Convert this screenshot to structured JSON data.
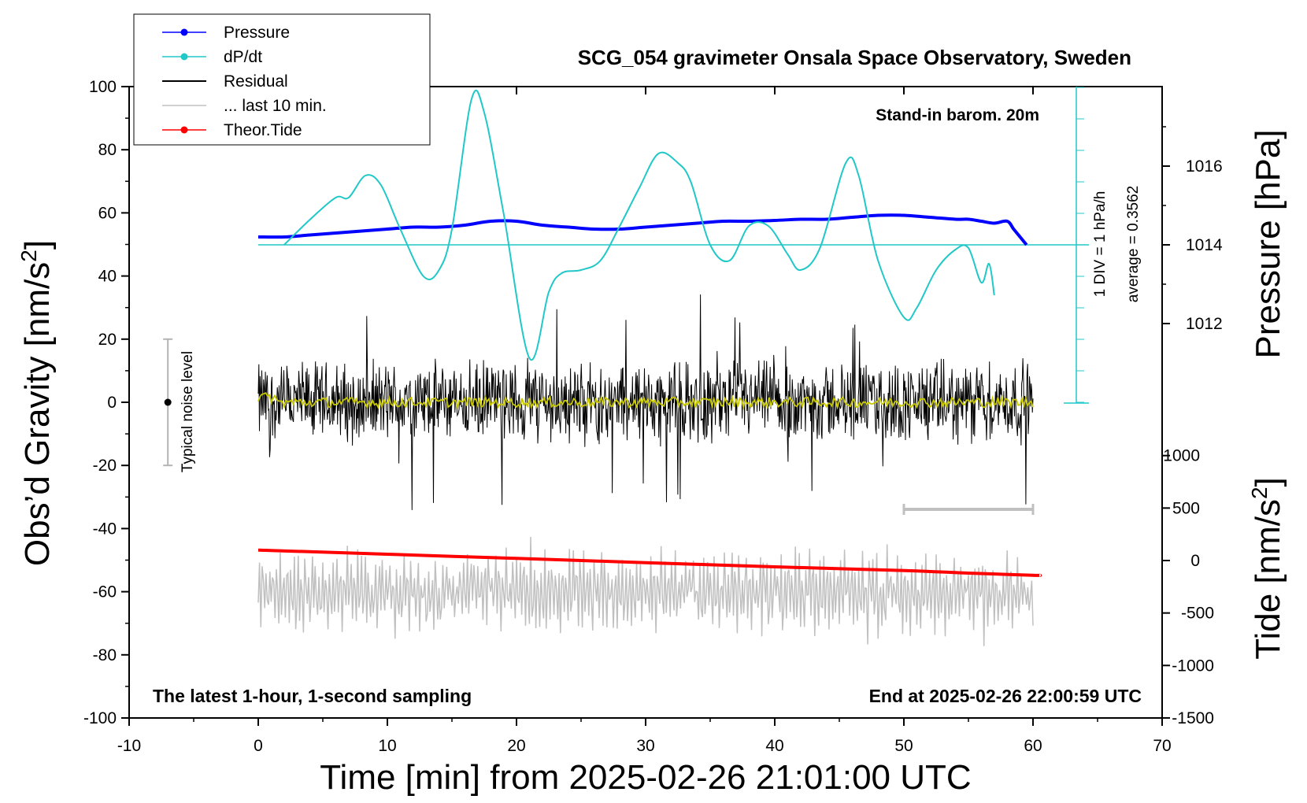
{
  "chart_data": {
    "type": "line",
    "title": "SCG_054 gravimeter Onsala Space Observatory, Sweden",
    "xlabel": "Time [min] from 2025-02-26 21:01:00 UTC",
    "ylabel_left": "Obs’d Gravity [nm/s²]",
    "ylabel_left_base": "Obs’d Gravity [nm/s",
    "ylabel_right_pressure_text": "Pressure [hPa]",
    "ylabel_right_tide_base": "Tide [nm/s",
    "superscript": "2",
    "close_bracket": "]",
    "xlim": [
      -10,
      70
    ],
    "xticks": [
      -10,
      0,
      10,
      20,
      30,
      40,
      50,
      60,
      70
    ],
    "ylim": [
      -100,
      100
    ],
    "yticks": [
      -100,
      -80,
      -60,
      -40,
      -20,
      0,
      20,
      40,
      60,
      80,
      100
    ],
    "pressure_axis": {
      "label": "Pressure [hPa]",
      "ticks": [
        1012,
        1014,
        1016
      ]
    },
    "tide_axis": {
      "label": "Tide [nm/s²]",
      "ticks": [
        -1500,
        -1000,
        -500,
        0,
        500,
        1000
      ]
    },
    "annotations": {
      "stand_in": "Stand-in barom. 20m",
      "div_label": "1 DIV = 1 hPa/h",
      "average": "average = 0.3562",
      "noise": "Typical noise level",
      "latest": "The latest 1-hour, 1-second sampling",
      "end": "End at 2025-02-26 22:00:59 UTC"
    },
    "legend": [
      {
        "label": "Pressure",
        "color": "#0000ff",
        "marker": true
      },
      {
        "label": "dP/dt",
        "color": "#20c8c8",
        "marker": true
      },
      {
        "label": "Residual",
        "color": "#000000",
        "marker": false
      },
      {
        "label": "... last 10 min.",
        "color": "#c0c0c0",
        "marker": false
      },
      {
        "label": "Theor.Tide",
        "color": "#ff0000",
        "marker": true
      }
    ],
    "series": [
      {
        "name": "Pressure",
        "color": "#0000ff",
        "axis": "pressure_hPa",
        "points": [
          [
            0,
            1014.2
          ],
          [
            2,
            1014.2
          ],
          [
            4,
            1014.25
          ],
          [
            6,
            1014.3
          ],
          [
            8,
            1014.35
          ],
          [
            10,
            1014.4
          ],
          [
            12,
            1014.45
          ],
          [
            14,
            1014.45
          ],
          [
            16,
            1014.5
          ],
          [
            18,
            1014.6
          ],
          [
            20,
            1014.6
          ],
          [
            22,
            1014.5
          ],
          [
            24,
            1014.45
          ],
          [
            26,
            1014.4
          ],
          [
            28,
            1014.4
          ],
          [
            30,
            1014.45
          ],
          [
            32,
            1014.5
          ],
          [
            34,
            1014.55
          ],
          [
            36,
            1014.6
          ],
          [
            38,
            1014.6
          ],
          [
            40,
            1014.62
          ],
          [
            42,
            1014.65
          ],
          [
            44,
            1014.65
          ],
          [
            46,
            1014.7
          ],
          [
            48,
            1014.75
          ],
          [
            50,
            1014.75
          ],
          [
            52,
            1014.7
          ],
          [
            54,
            1014.65
          ],
          [
            55,
            1014.65
          ],
          [
            56,
            1014.6
          ],
          [
            57,
            1014.55
          ],
          [
            58,
            1014.6
          ],
          [
            58.5,
            1014.4
          ],
          [
            59,
            1014.2
          ],
          [
            59.5,
            1014.0
          ]
        ]
      },
      {
        "name": "dP/dt",
        "color": "#20c8c8",
        "axis": "dpdt_hPa_per_h",
        "points": [
          [
            2,
            0
          ],
          [
            4,
            0.8
          ],
          [
            6,
            1.5
          ],
          [
            7,
            1.5
          ],
          [
            8.3,
            2.2
          ],
          [
            9.5,
            1.9
          ],
          [
            11,
            0.5
          ],
          [
            12.8,
            -1.0
          ],
          [
            14,
            -0.8
          ],
          [
            15,
            0.5
          ],
          [
            16.5,
            4.6
          ],
          [
            17.5,
            4.2
          ],
          [
            19,
            1.0
          ],
          [
            21,
            -3.6
          ],
          [
            22.5,
            -1.5
          ],
          [
            23.5,
            -0.9
          ],
          [
            25,
            -0.8
          ],
          [
            26.5,
            -0.5
          ],
          [
            28,
            0.6
          ],
          [
            29.5,
            1.8
          ],
          [
            31,
            2.9
          ],
          [
            32.5,
            2.6
          ],
          [
            33.5,
            2.0
          ],
          [
            35,
            0
          ],
          [
            36.5,
            -0.5
          ],
          [
            38,
            0.6
          ],
          [
            39.5,
            0.6
          ],
          [
            41,
            -0.3
          ],
          [
            42,
            -0.8
          ],
          [
            43.5,
            -0.1
          ],
          [
            45.5,
            2.6
          ],
          [
            46.5,
            2.2
          ],
          [
            48,
            -0.5
          ],
          [
            50,
            -2.3
          ],
          [
            51,
            -2.0
          ],
          [
            52.5,
            -0.8
          ],
          [
            54,
            -0.15
          ],
          [
            55,
            -0.1
          ],
          [
            56,
            -1.2
          ],
          [
            56.6,
            -0.6
          ],
          [
            57,
            -1.6
          ]
        ]
      },
      {
        "name": "Theor.Tide",
        "color": "#ff0000",
        "axis": "tide_nm_s2",
        "points": [
          [
            0,
            100
          ],
          [
            10,
            60
          ],
          [
            20,
            20
          ],
          [
            30,
            -20
          ],
          [
            40,
            -60
          ],
          [
            50,
            -95
          ],
          [
            55,
            -120
          ],
          [
            60,
            -140
          ],
          [
            60.5,
            -140
          ]
        ]
      }
    ],
    "residual": {
      "color": "#000000",
      "x_range": [
        0,
        60
      ],
      "typical_amplitude": 15,
      "peak_amplitude": 35,
      "moving_average_color": "#c8c800"
    },
    "last_10_min": {
      "color": "#c0c0c0",
      "bracket_range": [
        50,
        60
      ],
      "typical_amplitude": 10
    },
    "noise_bar": {
      "x": -7,
      "y": 0,
      "half_range": 20
    }
  }
}
